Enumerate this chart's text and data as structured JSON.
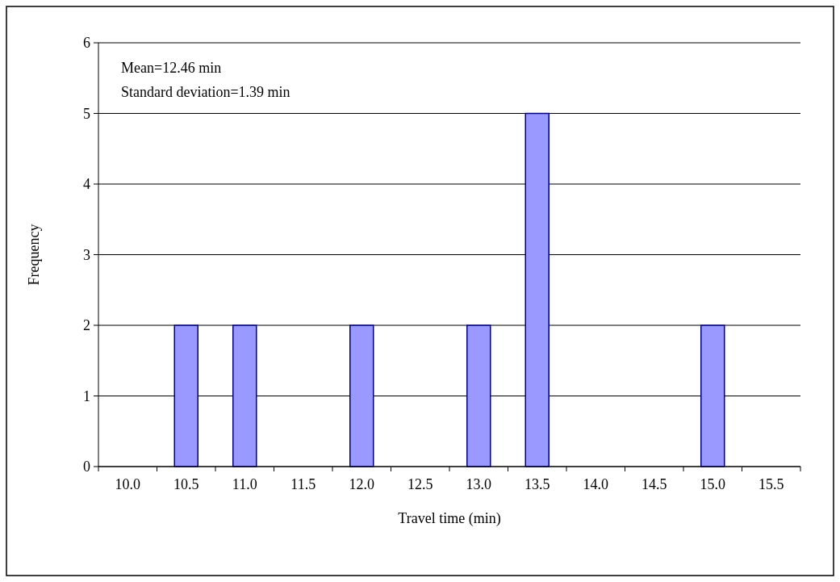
{
  "chart_data": {
    "type": "bar",
    "xlabel": "Travel time (min)",
    "ylabel": "Frequency",
    "categories": [
      "10.0",
      "10.5",
      "11.0",
      "11.5",
      "12.0",
      "12.5",
      "13.0",
      "13.5",
      "14.0",
      "14.5",
      "15.0",
      "15.5"
    ],
    "values": [
      0,
      2,
      2,
      0,
      2,
      0,
      2,
      5,
      0,
      0,
      2,
      0
    ],
    "color": "#9999ff",
    "ylim": [
      0,
      6
    ],
    "yticks": [
      0,
      1,
      2,
      3,
      4,
      5,
      6
    ],
    "grid": "y",
    "annotations": [
      "Mean=12.46 min",
      "Standard deviation=1.39 min"
    ]
  }
}
